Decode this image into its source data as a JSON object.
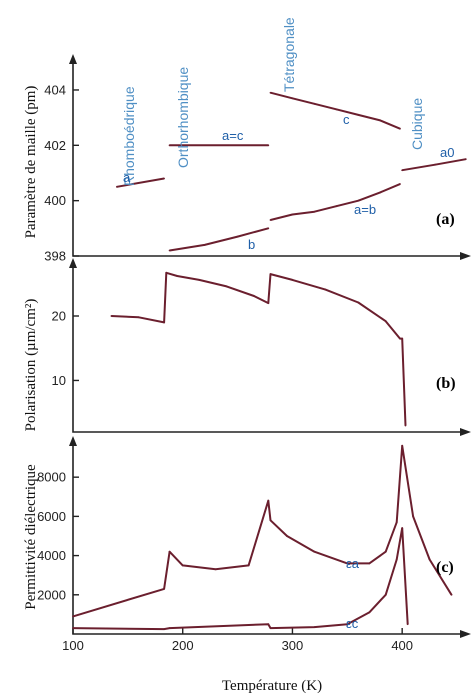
{
  "chart_data": [
    {
      "panel": "(a)",
      "type": "line",
      "ylabel": "Paramètre de maille (pm)",
      "yticks": [
        398,
        400,
        402,
        404
      ],
      "ylim": [
        398,
        405.3
      ],
      "xlim": [
        100,
        460
      ],
      "phases": [
        "Rhomboédrique",
        "Orthorhombique",
        "Tétragonale",
        "Cubique"
      ],
      "annotations": [
        "a",
        "a=c",
        "c",
        "a0",
        "a=b",
        "b"
      ],
      "series": [
        {
          "name": "a",
          "x": [
            140,
            183
          ],
          "y": [
            400.5,
            400.8
          ]
        },
        {
          "name": "a=c",
          "x": [
            188,
            278
          ],
          "y": [
            402.0,
            402.0
          ]
        },
        {
          "name": "b",
          "x": [
            188,
            220,
            250,
            278
          ],
          "y": [
            398.2,
            398.4,
            398.7,
            399.0
          ]
        },
        {
          "name": "c",
          "x": [
            280,
            300,
            320,
            340,
            360,
            380,
            398
          ],
          "y": [
            403.9,
            403.7,
            403.5,
            403.3,
            403.1,
            402.9,
            402.6
          ]
        },
        {
          "name": "a=b",
          "x": [
            280,
            300,
            320,
            340,
            360,
            380,
            398
          ],
          "y": [
            399.3,
            399.5,
            399.6,
            399.8,
            400.0,
            400.3,
            400.6
          ]
        },
        {
          "name": "a0",
          "x": [
            400,
            430,
            458
          ],
          "y": [
            401.1,
            401.3,
            401.5
          ]
        }
      ]
    },
    {
      "panel": "(b)",
      "type": "line",
      "ylabel": "Polarisation (µm/cm²)",
      "yticks": [
        10,
        20
      ],
      "ylim": [
        2,
        29
      ],
      "xlim": [
        100,
        460
      ],
      "series": [
        {
          "x": [
            135,
            160,
            183,
            185,
            195,
            215,
            240,
            265,
            278,
            280,
            300,
            330,
            360,
            385,
            398,
            400,
            403
          ],
          "y": [
            20,
            19.8,
            19,
            26.7,
            26.2,
            25.6,
            24.6,
            23.1,
            22.0,
            26.5,
            25.6,
            24.1,
            22.1,
            19.2,
            16.5,
            16.5,
            3
          ]
        }
      ]
    },
    {
      "panel": "(c)",
      "type": "line",
      "ylabel": "Permittivité diélectrique",
      "xlabel": "Température (K)",
      "xticks": [
        100,
        200,
        300,
        400
      ],
      "yticks": [
        2000,
        4000,
        6000,
        8000
      ],
      "ylim": [
        0,
        10100
      ],
      "xlim": [
        100,
        460
      ],
      "annotations": [
        "εa",
        "εc"
      ],
      "series": [
        {
          "name": "εa",
          "x": [
            100,
            183,
            188,
            200,
            230,
            260,
            278,
            280,
            295,
            320,
            350,
            370,
            385,
            395,
            400,
            410,
            425,
            445
          ],
          "y": [
            900,
            2300,
            4200,
            3500,
            3300,
            3500,
            6800,
            5800,
            5000,
            4200,
            3600,
            3600,
            4200,
            5700,
            9600,
            6000,
            3800,
            2000
          ]
        },
        {
          "name": "εc",
          "x": [
            100,
            183,
            188,
            278,
            280,
            320,
            350,
            370,
            385,
            395,
            400,
            405
          ],
          "y": [
            300,
            250,
            300,
            500,
            300,
            350,
            500,
            1100,
            2000,
            3800,
            5400,
            500
          ]
        }
      ]
    }
  ]
}
